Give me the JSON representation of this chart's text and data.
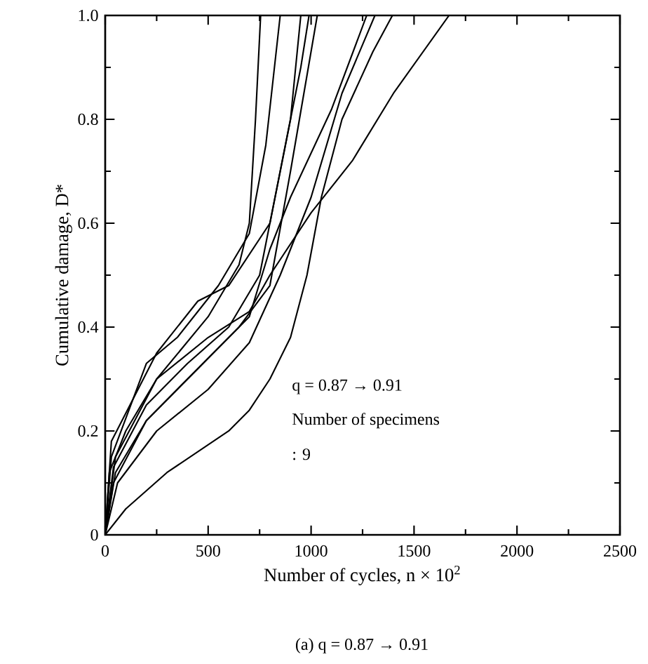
{
  "chart_data": {
    "type": "line",
    "xlabel": "Number of cycles,  n × 10$^{2}$",
    "ylabel": "Cumulative damage,  D*",
    "annotations": [
      "q = 0.87  →  0.91",
      "Number of specimens",
      ":  9",
      "(a)  q = 0.87 → 0.91"
    ],
    "xlim": [
      0,
      2500
    ],
    "ylim": [
      0,
      1
    ],
    "xticks": [
      0,
      500,
      1000,
      1500,
      2000,
      2500
    ],
    "yticks": [
      0,
      0.2,
      0.4,
      0.6,
      0.8,
      {
        "value": 1,
        "label": "1.0"
      }
    ],
    "grid": false,
    "marker": "none",
    "line_style": "solid",
    "series": [
      {
        "color": "#000000",
        "x": [
          0,
          20,
          100,
          250,
          500,
          650,
          700,
          730,
          755
        ],
        "values": [
          0,
          0.12,
          0.2,
          0.3,
          0.42,
          0.52,
          0.6,
          0.8,
          1.0
        ]
      },
      {
        "color": "#000000",
        "x": [
          0,
          30,
          200,
          350,
          550,
          700,
          780,
          850
        ],
        "values": [
          0,
          0.15,
          0.33,
          0.38,
          0.48,
          0.58,
          0.75,
          1.0
        ]
      },
      {
        "color": "#000000",
        "x": [
          0,
          40,
          200,
          400,
          600,
          750,
          850,
          950,
          990
        ],
        "values": [
          0,
          0.13,
          0.25,
          0.33,
          0.4,
          0.5,
          0.7,
          0.9,
          1.0
        ]
      },
      {
        "color": "#000000",
        "x": [
          0,
          50,
          200,
          450,
          650,
          800,
          900,
          1030
        ],
        "values": [
          0,
          0.12,
          0.22,
          0.32,
          0.4,
          0.48,
          0.7,
          1.0
        ]
      },
      {
        "color": "#000000",
        "x": [
          0,
          30,
          250,
          450,
          600,
          800,
          900,
          950
        ],
        "values": [
          0,
          0.18,
          0.35,
          0.45,
          0.48,
          0.6,
          0.8,
          1.0
        ]
      },
      {
        "color": "#000000",
        "x": [
          0,
          40,
          200,
          450,
          700,
          800,
          900,
          1100,
          1270
        ],
        "values": [
          0,
          0.1,
          0.22,
          0.32,
          0.42,
          0.55,
          0.65,
          0.82,
          1.0
        ]
      },
      {
        "color": "#000000",
        "x": [
          0,
          60,
          250,
          500,
          700,
          850,
          1000,
          1150,
          1310
        ],
        "values": [
          0,
          0.1,
          0.2,
          0.28,
          0.37,
          0.5,
          0.65,
          0.85,
          1.0
        ]
      },
      {
        "color": "#000000",
        "x": [
          0,
          100,
          300,
          600,
          700,
          800,
          900,
          980,
          1050,
          1150,
          1300,
          1395
        ],
        "values": [
          0,
          0.05,
          0.12,
          0.2,
          0.24,
          0.3,
          0.38,
          0.5,
          0.65,
          0.8,
          0.93,
          1.0
        ]
      },
      {
        "color": "#000000",
        "x": [
          0,
          50,
          250,
          500,
          700,
          800,
          1000,
          1200,
          1400,
          1670
        ],
        "values": [
          0,
          0.15,
          0.3,
          0.38,
          0.43,
          0.5,
          0.62,
          0.72,
          0.85,
          1.0
        ]
      }
    ]
  }
}
